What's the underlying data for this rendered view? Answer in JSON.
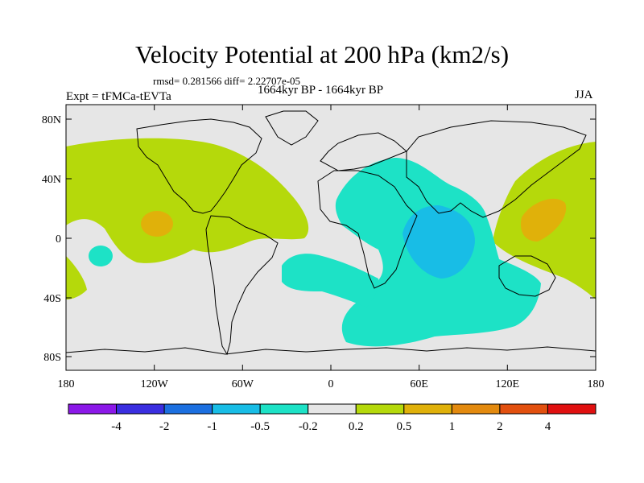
{
  "title": "Velocity Potential at 200 hPa (km2/s)",
  "stats_text": "rmsd= 0.281566 diff= 2.22707e-05",
  "experiment_label": "Expt = tFMCa-tEVTa",
  "period_label": "1664kyr BP - 1664kyr BP",
  "season_label": "JJA",
  "y_axis": {
    "ticks": [
      "80N",
      "40N",
      "0",
      "40S",
      "80S"
    ]
  },
  "x_axis": {
    "ticks": [
      "180",
      "120W",
      "60W",
      "0",
      "60E",
      "120E",
      "180"
    ]
  },
  "colorbar": {
    "labels": [
      "-4",
      "-2",
      "-1",
      "-0.5",
      "-0.2",
      "0.2",
      "0.5",
      "1",
      "2",
      "4"
    ],
    "colors": [
      "#8b18e8",
      "#3a2ee0",
      "#1b6fe0",
      "#18bde6",
      "#1de2c6",
      "#e6e6e6",
      "#b5d90b",
      "#e0b10a",
      "#e38a0f",
      "#e2500f",
      "#e01010"
    ]
  },
  "colors": {
    "background_near_zero": "#e6e6e6",
    "positive_0_2": "#b5d90b",
    "positive_0_5": "#e0b10a",
    "negative_0_2": "#1de2c6",
    "negative_0_5": "#18bde6"
  }
}
